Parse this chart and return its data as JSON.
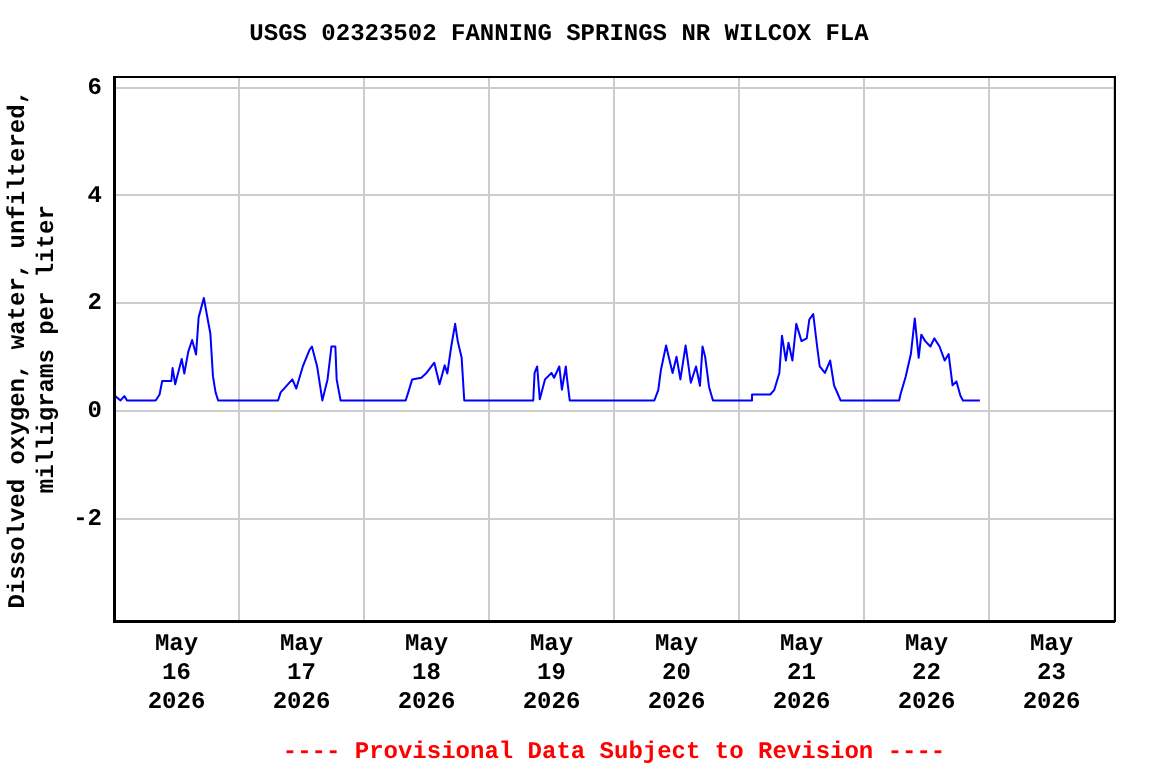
{
  "chart_data": {
    "type": "line",
    "title": "USGS 02323502 FANNING SPRINGS NR WILCOX FLA",
    "ylabel": "Dissolved oxygen, water, unfiltered,\nmilligrams per liter",
    "annotations": [
      "---- Provisional Data Subject to Revision ----"
    ],
    "xlim": [
      "2026-05-16T00:00",
      "2026-05-24T00:00"
    ],
    "xticks": [
      {
        "value": "2026-05-16T00:00",
        "label": null
      },
      {
        "value": "2026-05-16T12:00",
        "label": "May\n16\n2026"
      },
      {
        "value": "2026-05-17T00:00",
        "label": null
      },
      {
        "value": "2026-05-17T12:00",
        "label": "May\n17\n2026"
      },
      {
        "value": "2026-05-18T00:00",
        "label": null
      },
      {
        "value": "2026-05-18T12:00",
        "label": "May\n18\n2026"
      },
      {
        "value": "2026-05-19T00:00",
        "label": null
      },
      {
        "value": "2026-05-19T12:00",
        "label": "May\n19\n2026"
      },
      {
        "value": "2026-05-20T00:00",
        "label": null
      },
      {
        "value": "2026-05-20T12:00",
        "label": "May\n20\n2026"
      },
      {
        "value": "2026-05-21T00:00",
        "label": null
      },
      {
        "value": "2026-05-21T12:00",
        "label": "May\n21\n2026"
      },
      {
        "value": "2026-05-22T00:00",
        "label": null
      },
      {
        "value": "2026-05-22T12:00",
        "label": "May\n22\n2026"
      },
      {
        "value": "2026-05-23T00:00",
        "label": null
      },
      {
        "value": "2026-05-23T12:00",
        "label": "May\n23\n2026"
      },
      {
        "value": "2026-05-24T00:00",
        "label": null
      }
    ],
    "ylim": [
      -3.9,
      6.2
    ],
    "yticks": [
      -2,
      0,
      2,
      4,
      6
    ],
    "grid": true,
    "series": [
      {
        "color": "#0000ff",
        "x": [
          "2026-05-16T00:15",
          "2026-05-16T01:15",
          "2026-05-16T02:00",
          "2026-05-16T02:30",
          "2026-05-16T08:00",
          "2026-05-16T08:45",
          "2026-05-16T09:15",
          "2026-05-16T11:00",
          "2026-05-16T11:15",
          "2026-05-16T11:45",
          "2026-05-16T13:00",
          "2026-05-16T13:30",
          "2026-05-16T14:15",
          "2026-05-16T15:00",
          "2026-05-16T15:45",
          "2026-05-16T16:15",
          "2026-05-16T17:15",
          "2026-05-16T18:00",
          "2026-05-16T18:30",
          "2026-05-16T19:00",
          "2026-05-16T19:30",
          "2026-05-16T20:00",
          "2026-05-17T07:30",
          "2026-05-17T08:00",
          "2026-05-17T10:15",
          "2026-05-17T11:00",
          "2026-05-17T12:15",
          "2026-05-17T13:30",
          "2026-05-17T14:00",
          "2026-05-17T15:00",
          "2026-05-17T16:00",
          "2026-05-17T17:00",
          "2026-05-17T17:45",
          "2026-05-17T18:30",
          "2026-05-17T18:45",
          "2026-05-17T19:30",
          "2026-05-18T08:00",
          "2026-05-18T08:30",
          "2026-05-18T09:15",
          "2026-05-18T11:00",
          "2026-05-18T12:00",
          "2026-05-18T13:30",
          "2026-05-18T14:30",
          "2026-05-18T15:30",
          "2026-05-18T16:00",
          "2026-05-18T16:45",
          "2026-05-18T17:30",
          "2026-05-18T18:00",
          "2026-05-18T18:45",
          "2026-05-18T19:15",
          "2026-05-19T08:30",
          "2026-05-19T08:45",
          "2026-05-19T09:15",
          "2026-05-19T09:45",
          "2026-05-19T10:45",
          "2026-05-19T12:00",
          "2026-05-19T12:30",
          "2026-05-19T13:30",
          "2026-05-19T14:00",
          "2026-05-19T14:45",
          "2026-05-19T15:00",
          "2026-05-19T15:30",
          "2026-05-20T07:45",
          "2026-05-20T08:30",
          "2026-05-20T09:00",
          "2026-05-20T10:00",
          "2026-05-20T10:30",
          "2026-05-20T11:15",
          "2026-05-20T12:00",
          "2026-05-20T12:45",
          "2026-05-20T13:45",
          "2026-05-20T14:45",
          "2026-05-20T15:45",
          "2026-05-20T16:30",
          "2026-05-20T17:00",
          "2026-05-20T17:30",
          "2026-05-20T18:15",
          "2026-05-20T19:00",
          "2026-05-21T02:30",
          "2026-05-21T02:30",
          "2026-05-21T06:00",
          "2026-05-21T06:45",
          "2026-05-21T07:45",
          "2026-05-21T08:15",
          "2026-05-21T09:00",
          "2026-05-21T09:30",
          "2026-05-21T10:15",
          "2026-05-21T11:00",
          "2026-05-21T12:00",
          "2026-05-21T13:00",
          "2026-05-21T13:30",
          "2026-05-21T14:15",
          "2026-05-21T15:00",
          "2026-05-21T15:30",
          "2026-05-21T16:30",
          "2026-05-21T17:30",
          "2026-05-21T18:15",
          "2026-05-21T18:45",
          "2026-05-21T19:30",
          "2026-05-22T06:45",
          "2026-05-22T07:00",
          "2026-05-22T08:00",
          "2026-05-22T09:00",
          "2026-05-22T09:45",
          "2026-05-22T10:30",
          "2026-05-22T11:00",
          "2026-05-22T11:45",
          "2026-05-22T12:45",
          "2026-05-22T13:30",
          "2026-05-22T14:30",
          "2026-05-22T15:30",
          "2026-05-22T16:15",
          "2026-05-22T17:00",
          "2026-05-22T17:45",
          "2026-05-22T18:30",
          "2026-05-22T19:00",
          "2026-05-22T22:15"
        ],
        "values": [
          0.28,
          0.2,
          0.28,
          0.2,
          0.2,
          0.31,
          0.56,
          0.56,
          0.8,
          0.5,
          0.97,
          0.7,
          1.1,
          1.32,
          1.05,
          1.74,
          2.1,
          1.7,
          1.44,
          0.65,
          0.35,
          0.2,
          0.2,
          0.35,
          0.59,
          0.42,
          0.83,
          1.13,
          1.2,
          0.83,
          0.2,
          0.59,
          1.2,
          1.2,
          0.59,
          0.2,
          0.2,
          0.35,
          0.59,
          0.62,
          0.71,
          0.9,
          0.5,
          0.85,
          0.7,
          1.2,
          1.62,
          1.3,
          0.99,
          0.2,
          0.2,
          0.71,
          0.83,
          0.22,
          0.59,
          0.71,
          0.62,
          0.83,
          0.4,
          0.83,
          0.59,
          0.2,
          0.2,
          0.39,
          0.76,
          1.22,
          1.01,
          0.71,
          1.01,
          0.59,
          1.22,
          0.53,
          0.83,
          0.47,
          1.2,
          1.01,
          0.45,
          0.2,
          0.2,
          0.31,
          0.31,
          0.39,
          0.71,
          1.4,
          0.94,
          1.27,
          0.94,
          1.62,
          1.3,
          1.35,
          1.7,
          1.8,
          1.2,
          0.83,
          0.71,
          0.94,
          0.48,
          0.37,
          0.2,
          0.2,
          0.31,
          0.64,
          1.06,
          1.72,
          0.99,
          1.42,
          1.3,
          1.2,
          1.35,
          1.2,
          0.94,
          1.06,
          0.48,
          0.55,
          0.29,
          0.2,
          0.2
        ]
      }
    ]
  }
}
